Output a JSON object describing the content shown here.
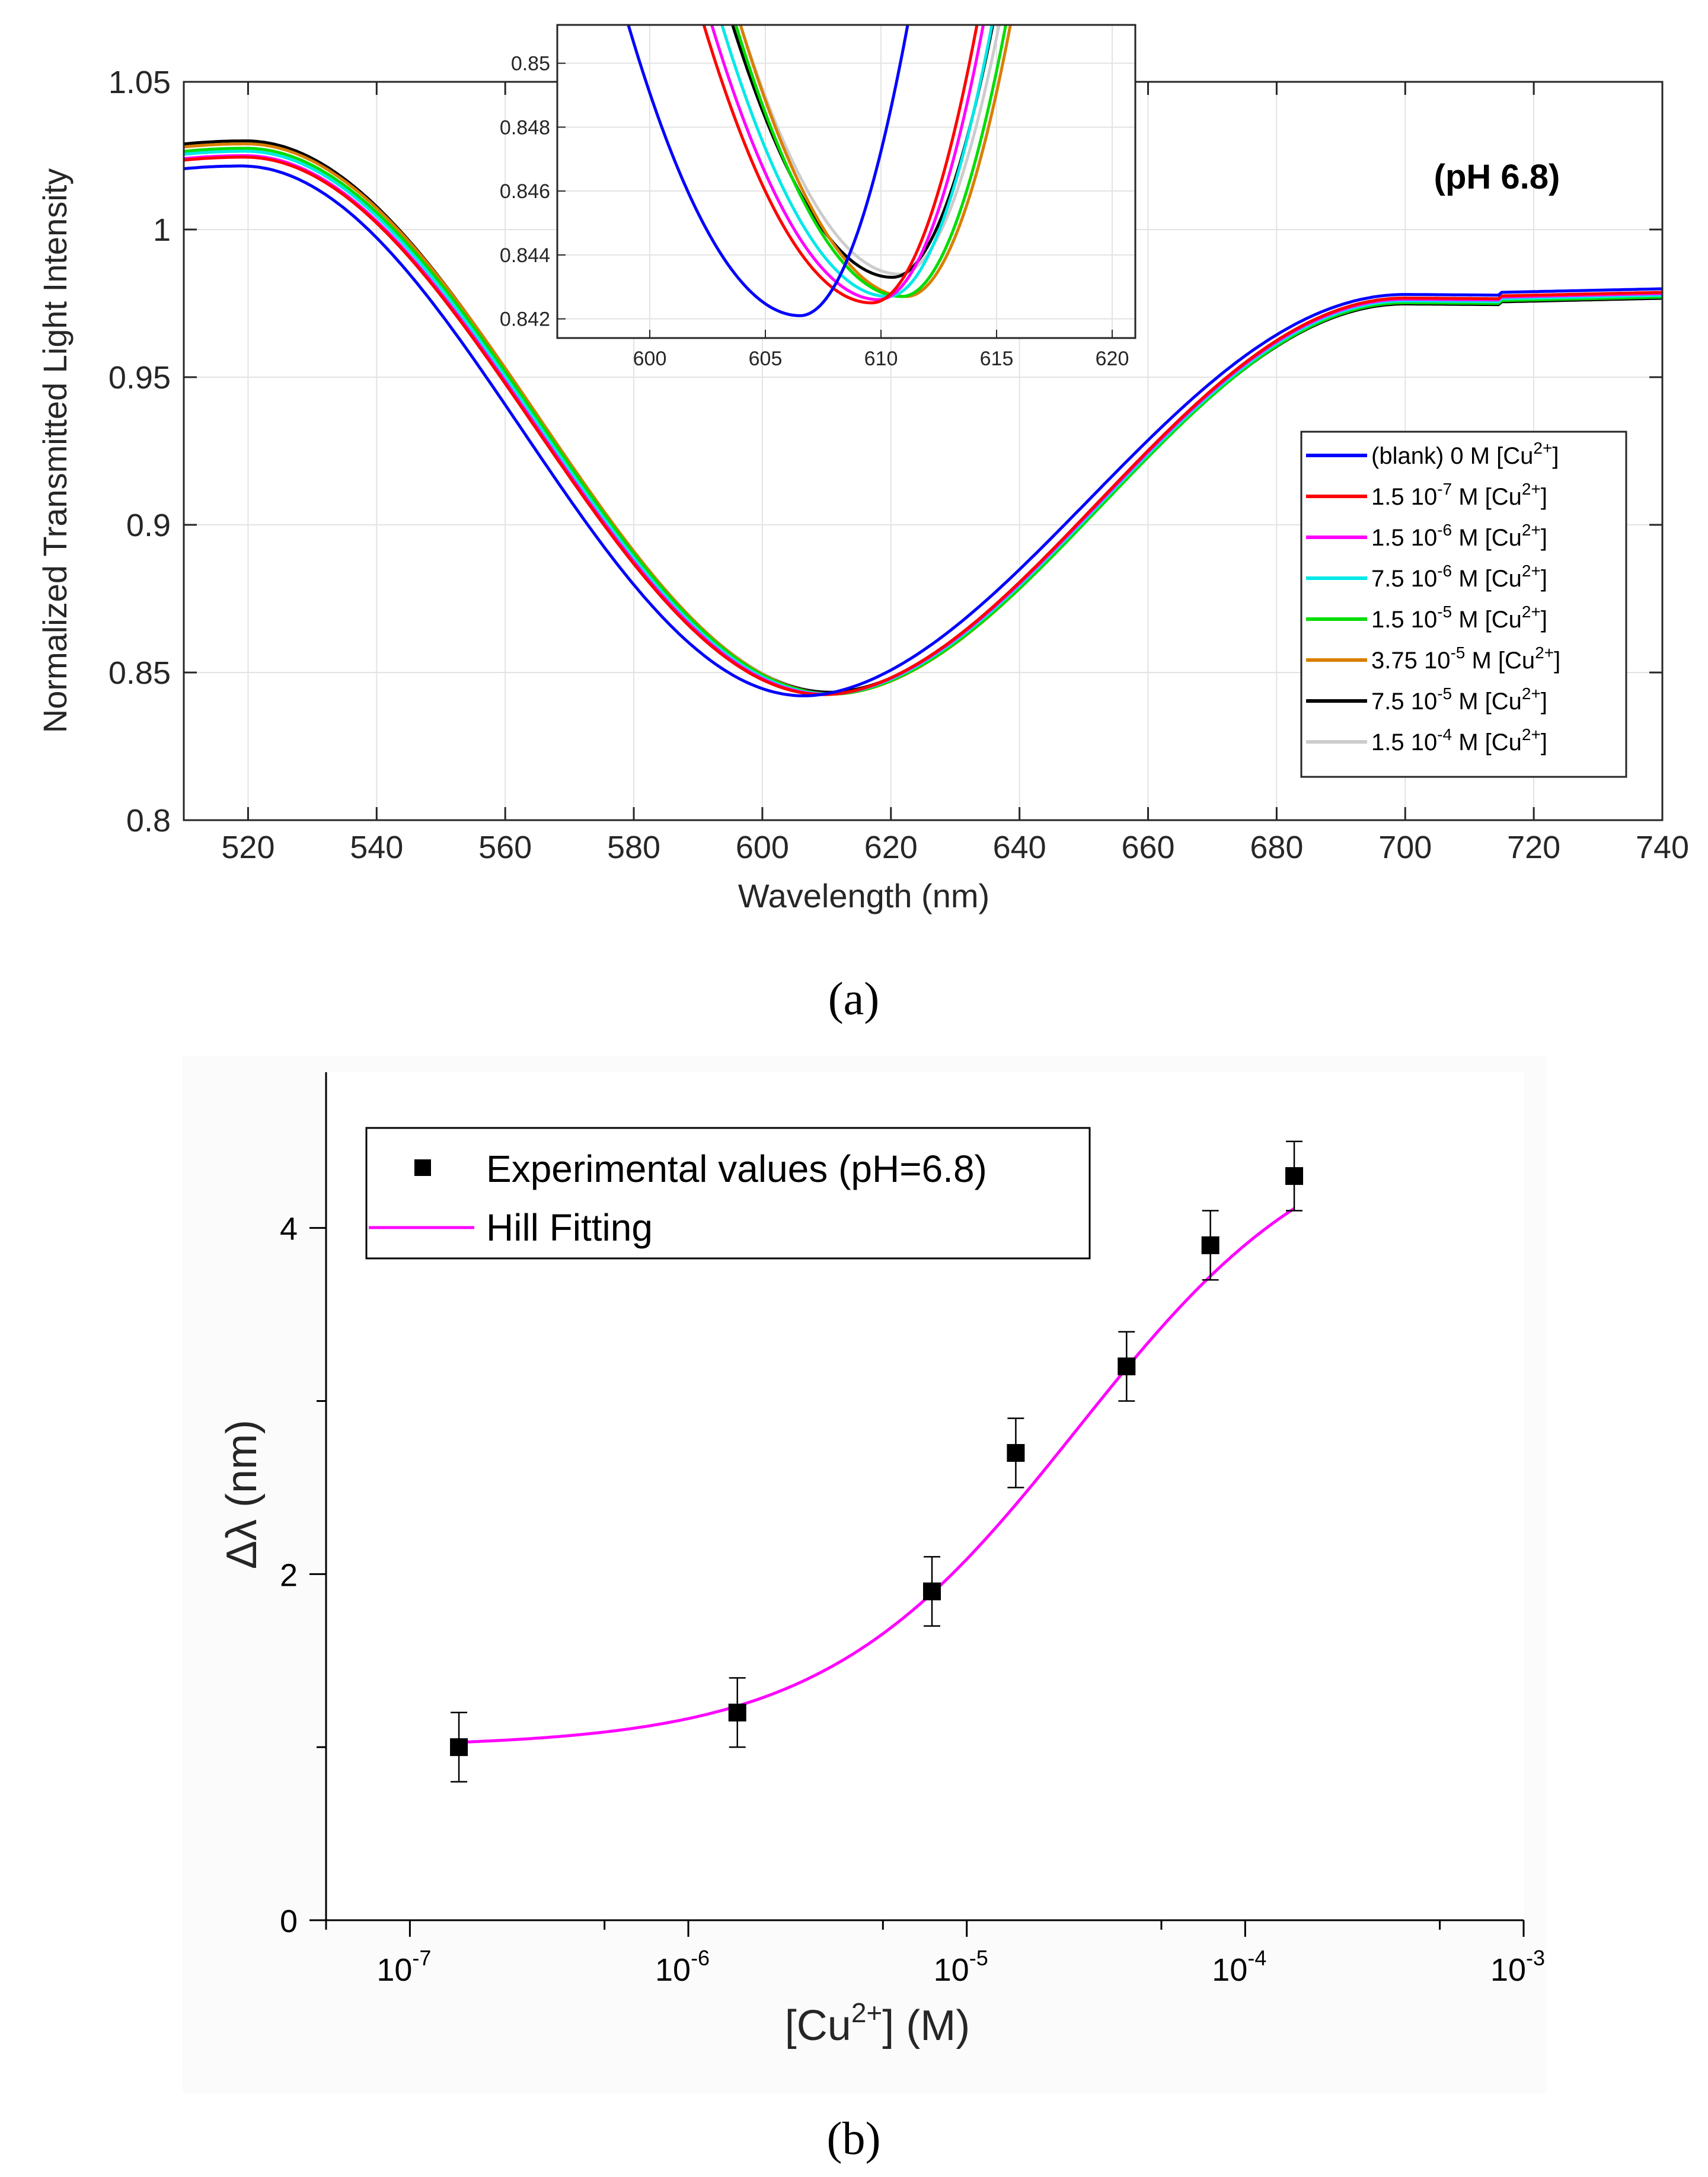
{
  "captions": {
    "a": "(a)",
    "b": "(b)"
  },
  "panel_a": {
    "annotation": "(pH 6.8)",
    "cu_label": "[Cu",
    "cu_charge": "2+",
    "cu_close": "]"
  },
  "panel_b": {
    "legend_points": "Experimental values (pH=6.8)",
    "legend_fit": "Hill Fitting",
    "xlabel_prefix": "[Cu",
    "xlabel_sup": "2+",
    "xlabel_suffix": "] (M)",
    "ylabel": "Δλ (nm)",
    "xtick_base": "10",
    "xtick_exponents": [
      "-7",
      "-6",
      "-5",
      "-4",
      "-3"
    ],
    "ytick_labels": [
      "0",
      "2",
      "4"
    ]
  },
  "chart_data": [
    {
      "type": "line",
      "panel": "a",
      "title": "",
      "xlabel": "Wavelength (nm)",
      "ylabel": "Normalized Transmitted Light Intensity",
      "xlim": [
        510,
        740
      ],
      "ylim": [
        0.8,
        1.05
      ],
      "xticks": [
        520,
        540,
        560,
        580,
        600,
        620,
        640,
        660,
        680,
        700,
        720,
        740
      ],
      "yticks": [
        0.8,
        0.85,
        0.9,
        0.95,
        1.0,
        1.05
      ],
      "ytick_labels": [
        "0.8",
        "0.85",
        "0.9",
        "0.95",
        "1",
        "1.05"
      ],
      "grid": true,
      "legend_position": "right",
      "series": [
        {
          "name": "(blank) 0 M",
          "conc": "",
          "exp": "",
          "color": "#0000ff",
          "min_wl": 606.5,
          "min_val": 0.8421,
          "peak": 1.0215,
          "tail": 0.978
        },
        {
          "name": "1.5 10-7 M",
          "conc": "1.5 10",
          "exp": "-7",
          "color": "#ff0000",
          "min_wl": 609.6,
          "min_val": 0.8425,
          "peak": 1.0245,
          "tail": 0.9768
        },
        {
          "name": "1.5 10-6 M",
          "conc": "1.5 10",
          "exp": "-6",
          "color": "#ff00ff",
          "min_wl": 609.9,
          "min_val": 0.8426,
          "peak": 1.025,
          "tail": 0.9764
        },
        {
          "name": "7.5 10-6 M",
          "conc": "7.5 10",
          "exp": "-6",
          "color": "#00e8e8",
          "min_wl": 610.3,
          "min_val": 0.8427,
          "peak": 1.0265,
          "tail": 0.9758
        },
        {
          "name": "1.5 10-5 M",
          "conc": "1.5 10",
          "exp": "-5",
          "color": "#00dd00",
          "min_wl": 610.9,
          "min_val": 0.8427,
          "peak": 1.0275,
          "tail": 0.9752
        },
        {
          "name": "3.75 10-5 M",
          "conc": "3.75 10",
          "exp": "-5",
          "color": "#d97e00",
          "min_wl": 611.1,
          "min_val": 0.8427,
          "peak": 1.029,
          "tail": 0.976
        },
        {
          "name": "7.5 10-5 M",
          "conc": "7.5 10",
          "exp": "-5",
          "color": "#000000",
          "min_wl": 610.5,
          "min_val": 0.8433,
          "peak": 1.03,
          "tail": 0.9748
        },
        {
          "name": "1.5 10-4 M",
          "conc": "1.5 10",
          "exp": "-4",
          "color": "#cccccc",
          "min_wl": 610.8,
          "min_val": 0.8434,
          "peak": 1.0295,
          "tail": 0.9755
        }
      ],
      "inset": {
        "xlim": [
          596,
          621
        ],
        "ylim": [
          0.8414,
          0.8512
        ],
        "xticks": [
          600,
          605,
          610,
          615,
          620
        ],
        "yticks": [
          0.842,
          0.844,
          0.846,
          0.848,
          0.85
        ],
        "ytick_labels": [
          "0.842",
          "0.844",
          "0.846",
          "0.848",
          "0.85"
        ]
      }
    },
    {
      "type": "scatter",
      "panel": "b",
      "xlabel": "[Cu2+] (M)",
      "ylabel": "Δλ (nm)",
      "xscale": "log",
      "xlim": [
        5e-08,
        0.001
      ],
      "ylim": [
        0,
        4.9
      ],
      "yticks": [
        0,
        2,
        4
      ],
      "legend_position": "top-left",
      "series": [
        {
          "name": "Experimental values (pH=6.8)",
          "x": [
            1.5e-07,
            1.5e-06,
            7.5e-06,
            1.5e-05,
            3.75e-05,
            7.5e-05,
            0.00015
          ],
          "y": [
            1.0,
            1.2,
            1.9,
            2.7,
            3.2,
            3.9,
            4.3
          ],
          "error": [
            0.2,
            0.2,
            0.2,
            0.2,
            0.2,
            0.2,
            0.2
          ],
          "color": "#000000"
        },
        {
          "name": "Hill Fitting",
          "model": "hill",
          "bottom": 1.0,
          "top": 4.68,
          "k": 2.5e-05,
          "n": 0.95,
          "x_range": [
            1.5e-07,
            0.00015
          ],
          "color": "#ff00ff"
        }
      ]
    }
  ]
}
